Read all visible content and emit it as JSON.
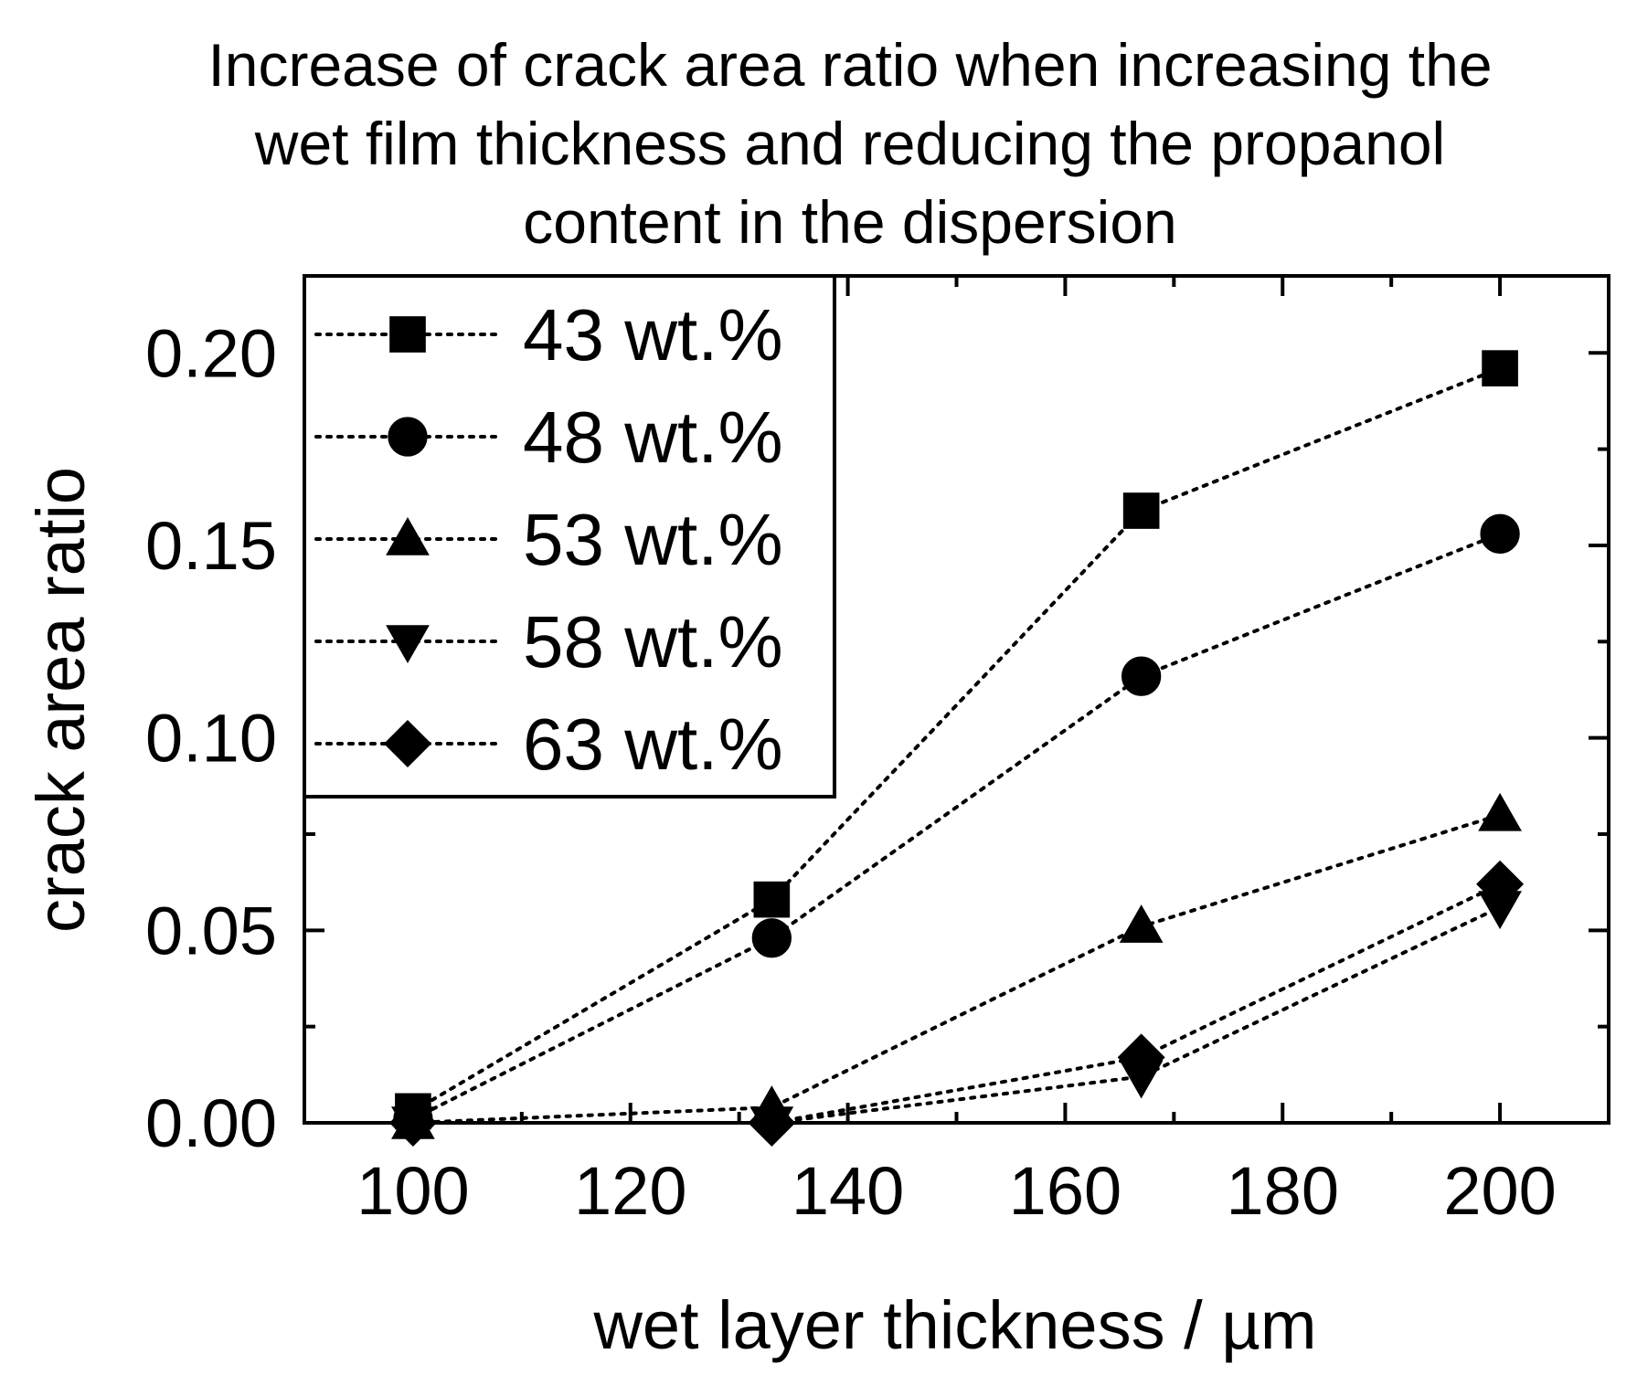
{
  "chart_data": {
    "type": "scatter",
    "title_lines": [
      "Increase of crack area ratio when increasing the",
      "wet film thickness and reducing the propanol",
      "content in the dispersion"
    ],
    "xlabel": "wet layer thickness / µm",
    "ylabel": "crack area ratio",
    "xlim": [
      90,
      210
    ],
    "ylim": [
      0.0,
      0.22
    ],
    "xticks": [
      100,
      120,
      140,
      160,
      180,
      200
    ],
    "xtick_labels": [
      "100",
      "120",
      "140",
      "160",
      "180",
      "200"
    ],
    "yticks": [
      0.0,
      0.05,
      0.1,
      0.15,
      0.2
    ],
    "ytick_labels": [
      "0.00",
      "0.05",
      "0.10",
      "0.15",
      "0.20"
    ],
    "line_style": "dotted",
    "legend_position": "top-left",
    "x": [
      100,
      133,
      167,
      200
    ],
    "series": [
      {
        "name": "43 wt.%",
        "marker": "square",
        "values": [
          0.003,
          0.058,
          0.159,
          0.196
        ]
      },
      {
        "name": "48 wt.%",
        "marker": "circle",
        "values": [
          0.001,
          0.048,
          0.116,
          0.153
        ]
      },
      {
        "name": "53 wt.%",
        "marker": "triangle-up",
        "values": [
          0.0,
          0.004,
          0.051,
          0.08
        ]
      },
      {
        "name": "58 wt.%",
        "marker": "triangle-down",
        "values": [
          0.0,
          0.0,
          0.012,
          0.056
        ]
      },
      {
        "name": "63 wt.%",
        "marker": "diamond",
        "values": [
          0.0,
          0.0,
          0.017,
          0.062
        ]
      }
    ]
  }
}
